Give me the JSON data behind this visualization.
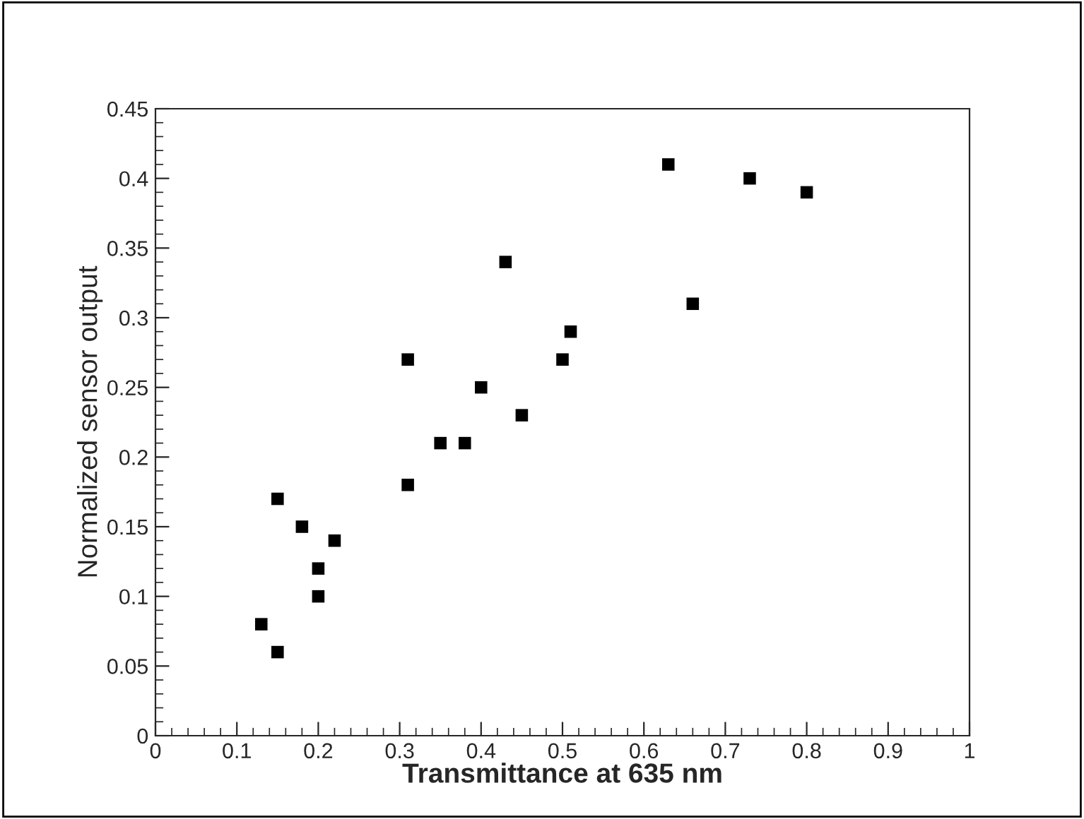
{
  "chart_data": {
    "type": "scatter",
    "xlabel": "Transmittance at 635 nm",
    "ylabel": "Normalized sensor output",
    "x": [
      0.13,
      0.15,
      0.15,
      0.18,
      0.2,
      0.2,
      0.22,
      0.31,
      0.31,
      0.35,
      0.38,
      0.4,
      0.43,
      0.45,
      0.5,
      0.51,
      0.63,
      0.66,
      0.73,
      0.8
    ],
    "series": [
      {
        "color": "#000000",
        "values": [
          0.08,
          0.06,
          0.17,
          0.15,
          0.12,
          0.1,
          0.14,
          0.27,
          0.18,
          0.21,
          0.21,
          0.25,
          0.34,
          0.23,
          0.27,
          0.29,
          0.41,
          0.31,
          0.4,
          0.39
        ]
      }
    ],
    "marker": "square",
    "grid": false,
    "legend": false,
    "xlim": [
      0,
      1
    ],
    "xticks": [
      0,
      0.1,
      0.2,
      0.3,
      0.4,
      0.5,
      0.6,
      0.7,
      0.8,
      0.9,
      1
    ],
    "ylim": [
      0,
      0.45
    ],
    "yticks": [
      0,
      0.05,
      0.1,
      0.15,
      0.2,
      0.25,
      0.3,
      0.35,
      0.4,
      0.45
    ]
  }
}
